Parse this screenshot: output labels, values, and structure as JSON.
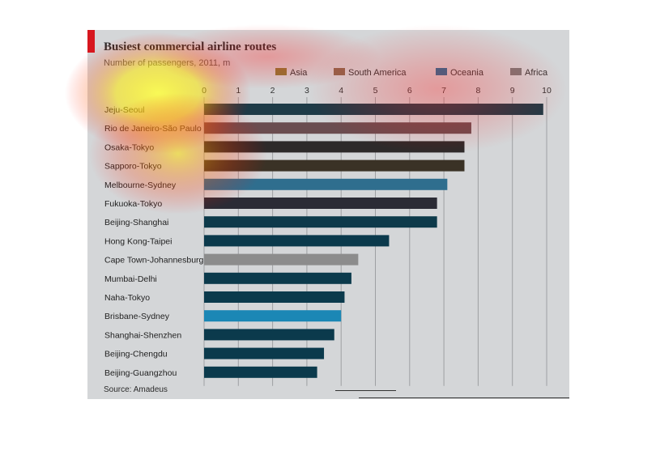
{
  "chart_data": {
    "type": "bar",
    "orientation": "horizontal",
    "title": "Busiest commercial airline routes",
    "subtitle": "Number of passengers, 2011, m",
    "source": "Source: Amadeus",
    "xlim": [
      0,
      10
    ],
    "x_ticks": [
      0,
      1,
      2,
      3,
      4,
      5,
      6,
      7,
      8,
      9,
      10
    ],
    "grid": true,
    "legend_position": "top",
    "legend": [
      {
        "name": "Asia",
        "color": "#8a7a35"
      },
      {
        "name": "South America",
        "color": "#8a6a50"
      },
      {
        "name": "Oceania",
        "color": "#1b6f9a"
      },
      {
        "name": "Africa",
        "color": "#7a7a7a"
      }
    ],
    "categories": [
      "Jeju-Seoul",
      "Rio de Janeiro-São Paulo",
      "Osaka-Tokyo",
      "Sapporo-Tokyo",
      "Melbourne-Sydney",
      "Fukuoka-Tokyo",
      "Beijing-Shanghai",
      "Hong Kong-Taipei",
      "Cape Town-Johannesburg",
      "Mumbai-Delhi",
      "Naha-Tokyo",
      "Brisbane-Sydney",
      "Shanghai-Shenzhen",
      "Beijing-Chengdu",
      "Beijing-Guangzhou"
    ],
    "values": [
      9.9,
      7.8,
      7.6,
      7.6,
      7.1,
      6.8,
      6.8,
      5.4,
      4.5,
      4.3,
      4.1,
      4.0,
      3.8,
      3.5,
      3.3
    ],
    "bar_colors": [
      "#1e3b47",
      "#6a4d50",
      "#2d2a2a",
      "#3a3226",
      "#2f6e8e",
      "#2b2b35",
      "#0d3a4a",
      "#0b3a4c",
      "#8c8c8c",
      "#0b3a4c",
      "#0b3a4c",
      "#1b87b5",
      "#0b3a4c",
      "#0b3a4c",
      "#0b3a4c"
    ]
  }
}
